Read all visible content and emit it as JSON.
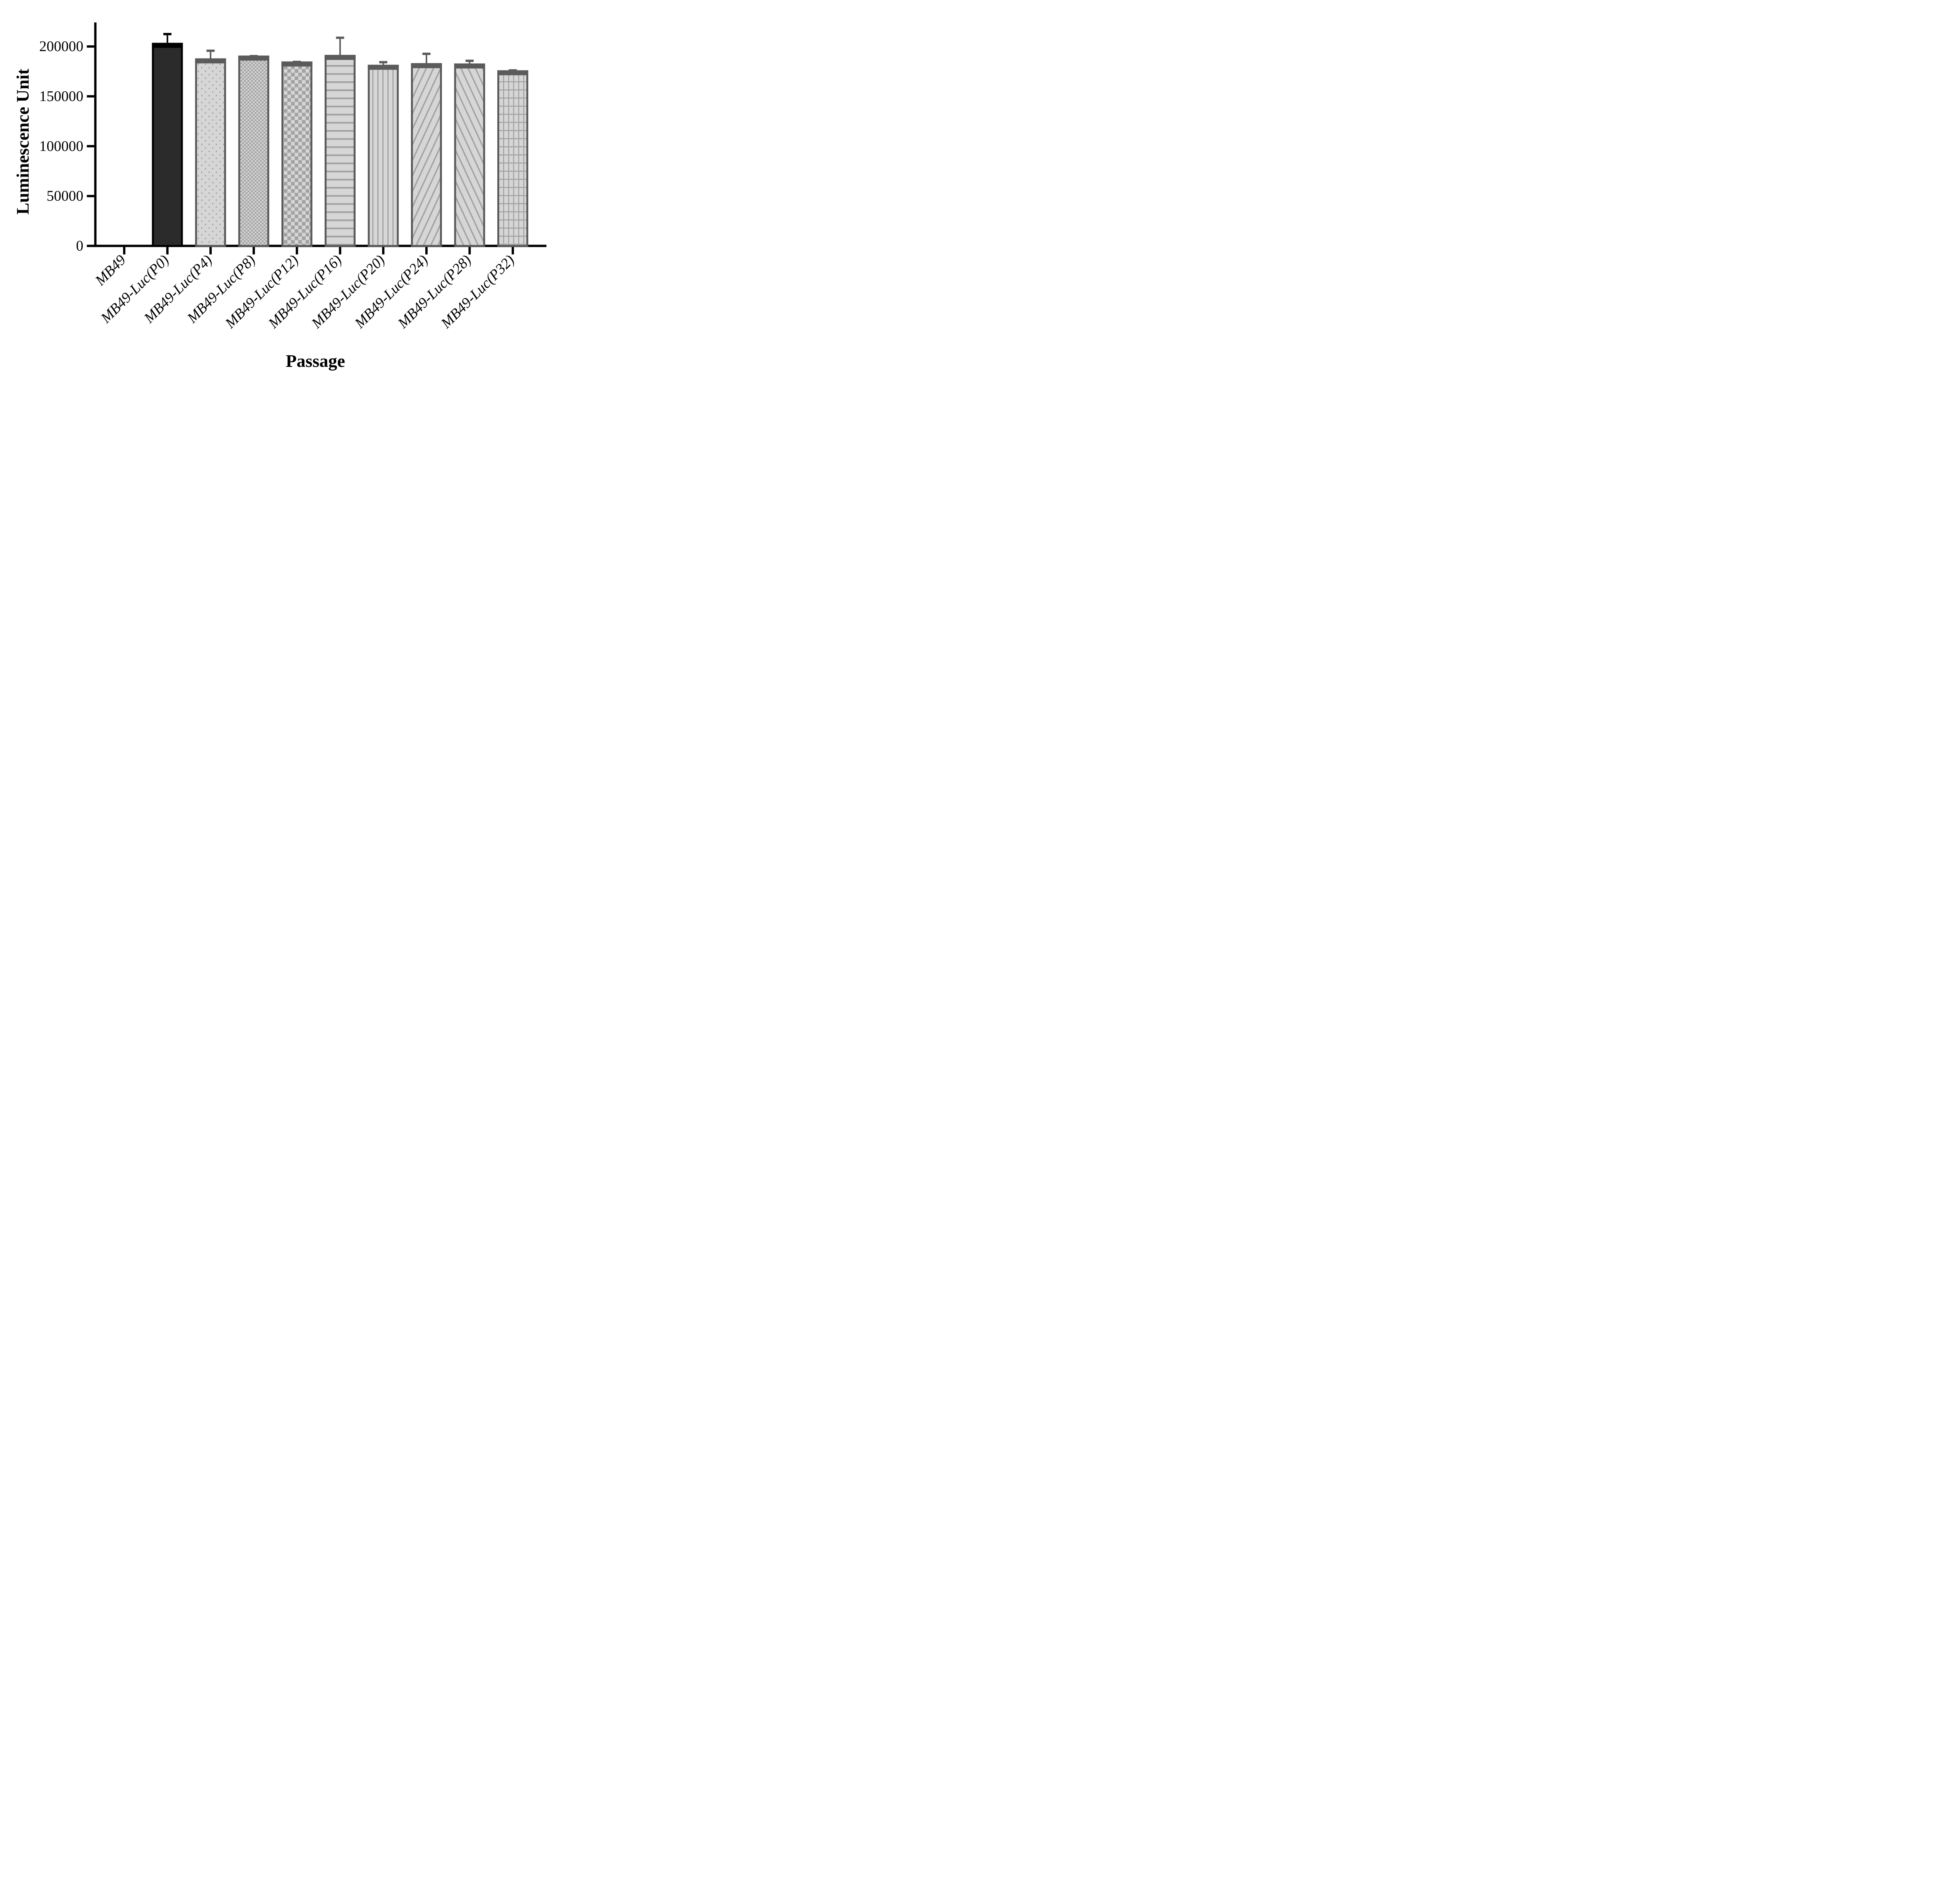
{
  "chart_data": {
    "type": "bar",
    "title": "",
    "xlabel": "Passage",
    "ylabel": "Luminescence Unit",
    "categories": [
      "MB49",
      "MB49-Luc(P0)",
      "MB49-Luc(P4)",
      "MB49-Luc(P8)",
      "MB49-Luc(P12)",
      "MB49-Luc(P16)",
      "MB49-Luc(P20)",
      "MB49-Luc(P24)",
      "MB49-Luc(P28)",
      "MB49-Luc(P32)"
    ],
    "values": [
      0,
      202700,
      187100,
      189900,
      184000,
      190600,
      180700,
      182300,
      182000,
      175200
    ],
    "errors_upper": [
      0,
      10900,
      9800,
      1600,
      1700,
      19300,
      4700,
      11500,
      4800,
      2000
    ],
    "patterns": [
      "none",
      "solid",
      "dots",
      "checker-fine",
      "checker-coarse",
      "hlines",
      "vlines",
      "diag-up",
      "diag-down",
      "grid"
    ],
    "yticks": [
      0,
      50000,
      100000,
      150000,
      200000
    ],
    "ytick_labels": [
      "0",
      "50000",
      "100000",
      "150000",
      "200000"
    ],
    "ylim": [
      0,
      225000
    ],
    "grid": "off",
    "legend": "none",
    "error_bars": "upper-sd",
    "colors": {
      "axis": "#000000",
      "solid_bar_fill": "#2b2b2b",
      "solid_bar_border": "#000000",
      "light_bar_fill": "#d6d6d6",
      "light_bar_border": "#5b5b5b",
      "pattern_gray": "#a2a2a2",
      "background": "#ffffff"
    }
  }
}
